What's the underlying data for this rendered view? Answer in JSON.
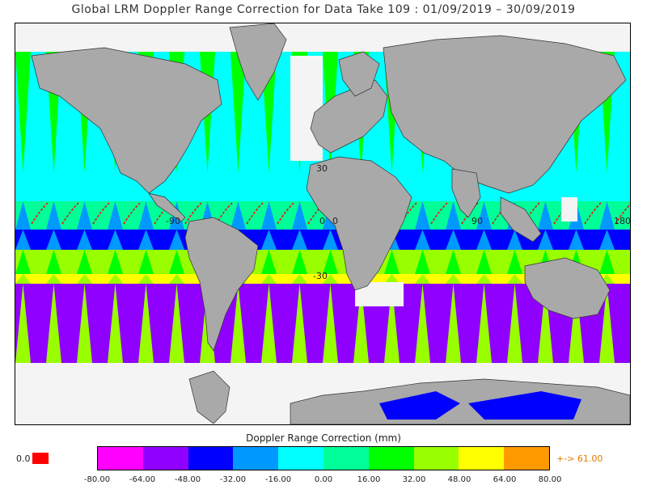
{
  "title": "Global LRM Doppler Range Correction for Data Take 109 : 01/09/2019 – 30/09/2019",
  "map": {
    "lat_labels": [
      "30",
      "0",
      "-30"
    ],
    "lon_labels": [
      "-90",
      "0",
      "90",
      "180"
    ],
    "land_color": "#a9a9a9",
    "ice_color": "#f4f4f4"
  },
  "colorbar": {
    "title": "Doppler Range Correction (mm)",
    "ticks": [
      "-80.00",
      "-64.00",
      "-48.00",
      "-32.00",
      "-16.00",
      "0.00",
      "16.00",
      "32.00",
      "48.00",
      "64.00",
      "80.00"
    ],
    "colors": [
      "#ff00ff",
      "#9000ff",
      "#0000ff",
      "#0099ff",
      "#00ffff",
      "#00ff99",
      "#00ff00",
      "#99ff00",
      "#ffff00",
      "#ff9900"
    ],
    "under_value": "0.0",
    "under_color": "#ff0000",
    "over_label": "+-> 61.00",
    "over_color": "#e07b00"
  }
}
